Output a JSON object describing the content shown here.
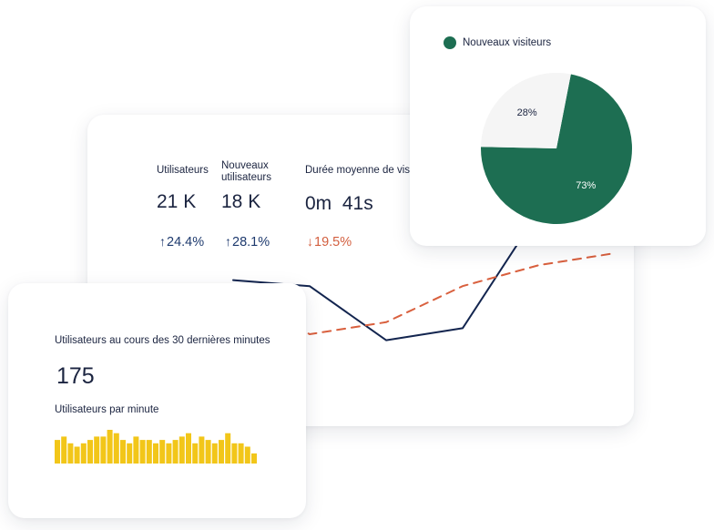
{
  "analytics": {
    "metrics": [
      {
        "label": "Utilisateurs",
        "value": "21 K",
        "change": "24.4%",
        "direction": "up"
      },
      {
        "label": "Nouveaux utilisateurs",
        "value": "18 K",
        "change": "28.1%",
        "direction": "up"
      },
      {
        "label": "Durée moyenne de vis",
        "value": "0m  41s",
        "change": "19.5%",
        "direction": "down"
      }
    ],
    "arrows": {
      "up": "↑",
      "down": "↓"
    }
  },
  "pie_card": {
    "legend_label": "Nouveaux visiteurs",
    "legend_color": "#1d6e52"
  },
  "realtime": {
    "title": "Utilisateurs au cours des 30 dernières minutes",
    "value": "175",
    "subtitle": "Utilisateurs par minute"
  },
  "colors": {
    "navy": "#13254f",
    "orange": "#d9603e",
    "green": "#1d6e52",
    "light": "#f5f5f5",
    "yellow": "#f2c619"
  },
  "chart_data": [
    {
      "type": "line",
      "x": [
        1,
        2,
        3,
        4,
        5,
        6,
        7
      ],
      "series": [
        {
          "values": [
            48,
            46,
            28,
            32,
            71,
            83,
            null
          ],
          "style": "solid",
          "color": "#13254f"
        },
        {
          "values": [
            45,
            30,
            34,
            46,
            53,
            57,
            null
          ],
          "style": "dashed",
          "color": "#d9603e"
        }
      ],
      "ylim": [
        0,
        100
      ]
    },
    {
      "type": "pie",
      "slices": [
        {
          "label": "73%",
          "value": 73,
          "color": "#1d6e52"
        },
        {
          "label": "28%",
          "value": 28,
          "color": "#f5f5f5"
        }
      ]
    },
    {
      "type": "bar",
      "values": [
        7,
        8,
        6,
        5,
        6,
        7,
        8,
        8,
        10,
        9,
        7,
        6,
        8,
        7,
        7,
        6,
        7,
        6,
        7,
        8,
        9,
        6,
        8,
        7,
        6,
        7,
        9,
        6,
        6,
        5,
        3
      ],
      "ylim": [
        0,
        10
      ],
      "color": "#f2c619"
    }
  ]
}
